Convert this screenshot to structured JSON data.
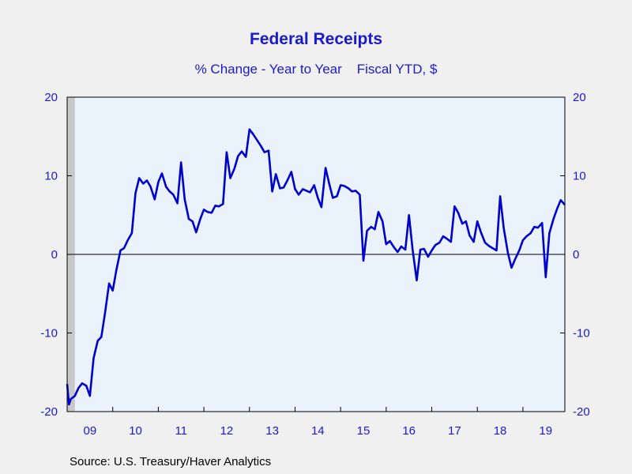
{
  "chart_data": {
    "type": "line",
    "title": "Federal Receipts",
    "subtitle": "% Change - Year to Year    Fiscal YTD, $",
    "source": "Source:  U.S. Treasury/Haver Analytics",
    "xlabel": "",
    "ylabel": "",
    "xlim": [
      2009.0,
      2019.92
    ],
    "ylim": [
      -20,
      20
    ],
    "y_ticks": [
      20,
      10,
      0,
      -10,
      -20
    ],
    "y_tick_labels_left": [
      "20",
      "10",
      "0",
      "-10",
      "-20"
    ],
    "y_tick_labels_right": [
      "20",
      "10",
      "0",
      "-10",
      "-20"
    ],
    "x_tick_labels": [
      {
        "label": "09",
        "x": 2009.5
      },
      {
        "label": "10",
        "x": 2010.5
      },
      {
        "label": "11",
        "x": 2011.5
      },
      {
        "label": "12",
        "x": 2012.5
      },
      {
        "label": "13",
        "x": 2013.5
      },
      {
        "label": "14",
        "x": 2014.5
      },
      {
        "label": "15",
        "x": 2015.5
      },
      {
        "label": "16",
        "x": 2016.5
      },
      {
        "label": "17",
        "x": 2017.5
      },
      {
        "label": "18",
        "x": 2018.5
      },
      {
        "label": "19",
        "x": 2019.5
      }
    ],
    "recession_shading": [
      [
        2009.0,
        2009.17
      ]
    ],
    "zero_line": true,
    "grid": false,
    "colors": {
      "line": "#0000cc",
      "plot_bg": "#eaf2fc",
      "page_bg": "#f0f0f0",
      "text": "#1a1acc",
      "recession": "#c8c8c8"
    },
    "series": [
      {
        "values": [
          [
            2009.0,
            -16.5
          ],
          [
            2009.04,
            -19.1
          ],
          [
            2009.08,
            -18.4
          ],
          [
            2009.17,
            -18.0
          ],
          [
            2009.25,
            -17.0
          ],
          [
            2009.33,
            -16.4
          ],
          [
            2009.42,
            -16.7
          ],
          [
            2009.5,
            -18.0
          ],
          [
            2009.58,
            -13.2
          ],
          [
            2009.67,
            -11.0
          ],
          [
            2009.75,
            -10.5
          ],
          [
            2009.83,
            -7.5
          ],
          [
            2009.92,
            -3.7
          ],
          [
            2010.0,
            -4.6
          ],
          [
            2010.08,
            -2.0
          ],
          [
            2010.17,
            0.5
          ],
          [
            2010.25,
            0.8
          ],
          [
            2010.33,
            1.8
          ],
          [
            2010.42,
            2.7
          ],
          [
            2010.5,
            7.8
          ],
          [
            2010.58,
            9.7
          ],
          [
            2010.67,
            9.0
          ],
          [
            2010.75,
            9.4
          ],
          [
            2010.83,
            8.6
          ],
          [
            2010.92,
            7.0
          ],
          [
            2011.0,
            9.2
          ],
          [
            2011.08,
            10.3
          ],
          [
            2011.17,
            8.6
          ],
          [
            2011.25,
            8.0
          ],
          [
            2011.33,
            7.6
          ],
          [
            2011.42,
            6.5
          ],
          [
            2011.5,
            11.7
          ],
          [
            2011.58,
            7.0
          ],
          [
            2011.67,
            4.5
          ],
          [
            2011.75,
            4.2
          ],
          [
            2011.83,
            2.8
          ],
          [
            2011.92,
            4.5
          ],
          [
            2012.0,
            5.7
          ],
          [
            2012.08,
            5.4
          ],
          [
            2012.17,
            5.3
          ],
          [
            2012.25,
            6.2
          ],
          [
            2012.33,
            6.1
          ],
          [
            2012.42,
            6.4
          ],
          [
            2012.5,
            13.0
          ],
          [
            2012.58,
            9.7
          ],
          [
            2012.67,
            10.9
          ],
          [
            2012.75,
            12.5
          ],
          [
            2012.83,
            13.1
          ],
          [
            2012.92,
            12.4
          ],
          [
            2013.0,
            15.9
          ],
          [
            2013.08,
            15.3
          ],
          [
            2013.17,
            14.5
          ],
          [
            2013.25,
            13.8
          ],
          [
            2013.33,
            13.0
          ],
          [
            2013.42,
            13.2
          ],
          [
            2013.5,
            8.0
          ],
          [
            2013.58,
            10.2
          ],
          [
            2013.67,
            8.4
          ],
          [
            2013.75,
            8.5
          ],
          [
            2013.83,
            9.4
          ],
          [
            2013.92,
            10.5
          ],
          [
            2014.0,
            8.3
          ],
          [
            2014.08,
            7.6
          ],
          [
            2014.17,
            8.3
          ],
          [
            2014.25,
            8.1
          ],
          [
            2014.33,
            7.9
          ],
          [
            2014.42,
            8.8
          ],
          [
            2014.5,
            7.2
          ],
          [
            2014.58,
            6.0
          ],
          [
            2014.67,
            11.0
          ],
          [
            2014.75,
            9.0
          ],
          [
            2014.83,
            7.2
          ],
          [
            2014.92,
            7.4
          ],
          [
            2015.0,
            8.8
          ],
          [
            2015.08,
            8.7
          ],
          [
            2015.17,
            8.4
          ],
          [
            2015.25,
            8.0
          ],
          [
            2015.33,
            8.1
          ],
          [
            2015.42,
            7.6
          ],
          [
            2015.5,
            -0.8
          ],
          [
            2015.58,
            3.0
          ],
          [
            2015.67,
            3.5
          ],
          [
            2015.75,
            3.2
          ],
          [
            2015.83,
            5.4
          ],
          [
            2015.92,
            4.2
          ],
          [
            2016.0,
            1.3
          ],
          [
            2016.08,
            1.7
          ],
          [
            2016.17,
            0.9
          ],
          [
            2016.25,
            0.3
          ],
          [
            2016.33,
            1.0
          ],
          [
            2016.42,
            0.6
          ],
          [
            2016.5,
            5.0
          ],
          [
            2016.58,
            0.6
          ],
          [
            2016.67,
            -3.3
          ],
          [
            2016.75,
            0.6
          ],
          [
            2016.83,
            0.7
          ],
          [
            2016.92,
            -0.3
          ],
          [
            2017.0,
            0.5
          ],
          [
            2017.08,
            1.2
          ],
          [
            2017.17,
            1.5
          ],
          [
            2017.25,
            2.3
          ],
          [
            2017.33,
            2.0
          ],
          [
            2017.42,
            1.6
          ],
          [
            2017.5,
            6.1
          ],
          [
            2017.58,
            5.3
          ],
          [
            2017.67,
            3.9
          ],
          [
            2017.75,
            4.2
          ],
          [
            2017.83,
            2.4
          ],
          [
            2017.92,
            1.6
          ],
          [
            2018.0,
            4.2
          ],
          [
            2018.08,
            2.8
          ],
          [
            2018.17,
            1.5
          ],
          [
            2018.25,
            1.1
          ],
          [
            2018.33,
            0.8
          ],
          [
            2018.42,
            0.5
          ],
          [
            2018.5,
            7.4
          ],
          [
            2018.58,
            3.3
          ],
          [
            2018.67,
            0.2
          ],
          [
            2018.75,
            -1.7
          ],
          [
            2018.83,
            -0.6
          ],
          [
            2018.92,
            0.5
          ],
          [
            2019.0,
            1.8
          ],
          [
            2019.08,
            2.3
          ],
          [
            2019.17,
            2.7
          ],
          [
            2019.25,
            3.5
          ],
          [
            2019.33,
            3.4
          ],
          [
            2019.42,
            4.0
          ],
          [
            2019.5,
            -2.9
          ],
          [
            2019.58,
            2.7
          ],
          [
            2019.67,
            4.5
          ],
          [
            2019.75,
            5.8
          ],
          [
            2019.83,
            6.9
          ],
          [
            2019.92,
            6.3
          ]
        ]
      }
    ]
  }
}
